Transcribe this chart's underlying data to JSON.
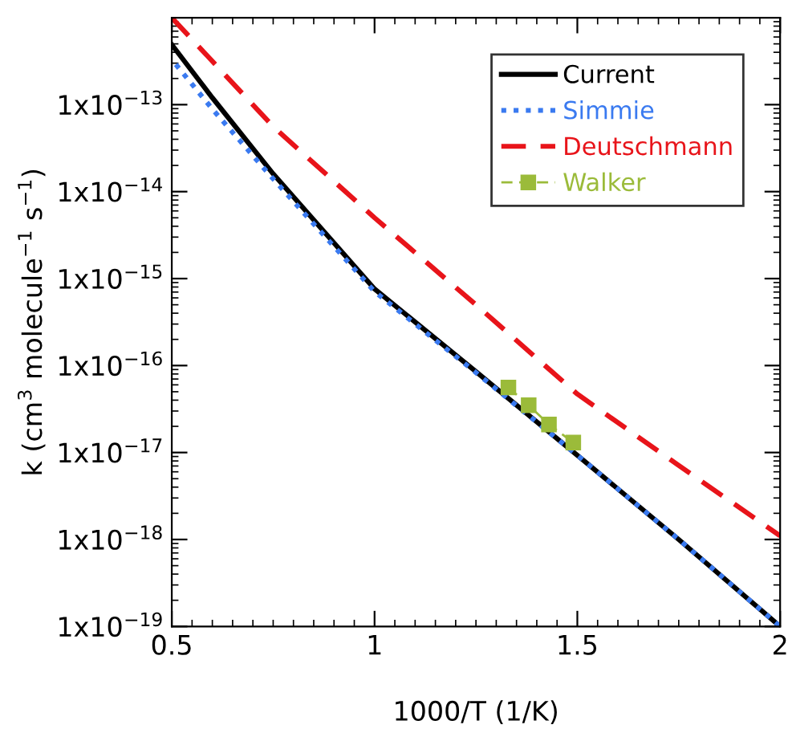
{
  "chart_data": {
    "type": "line",
    "xlabel": "1000/T (1/K)",
    "ylabel": "k (cm$^{3}$ molecule$^{−1}$ s$^{−1}$)",
    "log": "y",
    "grid": false,
    "legend": "top right",
    "xlim": [
      0.5,
      2
    ],
    "xticks": [
      0.5,
      1,
      1.5,
      2
    ],
    "ylim": [
      1e-19,
      1e-12
    ],
    "yticks": [
      {
        "value": 1e-19,
        "label": "1x10$^{−19}$"
      },
      {
        "value": 1e-18,
        "label": "1x10$^{−18}$"
      },
      {
        "value": 1e-17,
        "label": "1x10$^{−17}$"
      },
      {
        "value": 1e-16,
        "label": "1x10$^{−16}$"
      },
      {
        "value": 1e-15,
        "label": "1x10$^{−15}$"
      },
      {
        "value": 1e-14,
        "label": "1x10$^{−14}$"
      },
      {
        "value": 1e-13,
        "label": "1x10$^{−13}$"
      }
    ],
    "series": [
      {
        "name": "Current",
        "color": "#000000",
        "line_style": "solid",
        "marker": "none",
        "x": [
          0.5,
          0.6,
          0.75,
          1.0,
          1.25,
          1.5,
          1.75,
          2.0
        ],
        "values": [
          4.9e-13,
          1.2e-13,
          1.6e-14,
          7.6e-16,
          8.5e-17,
          9.3e-18,
          1e-18,
          1e-19
        ]
      },
      {
        "name": "Simmie",
        "color": "#3a7af0",
        "line_style": "dotted",
        "marker": "none",
        "x": [
          0.51,
          0.6,
          0.75,
          1.0,
          1.25,
          1.5,
          1.75,
          2.0
        ],
        "values": [
          2.9e-13,
          8.9e-14,
          1.4e-14,
          7.1e-16,
          8.3e-17,
          9.3e-18,
          1e-18,
          1e-19
        ]
      },
      {
        "name": "Deutschmann",
        "color": "#e8141a",
        "line_style": "dashed",
        "marker": "none",
        "x": [
          0.5,
          0.75,
          1.0,
          1.25,
          1.5,
          1.75,
          2.0
        ],
        "values": [
          1e-12,
          5.6e-14,
          5e-15,
          5e-16,
          4.7e-17,
          7.1e-18,
          1.1e-18
        ]
      },
      {
        "name": "Walker",
        "color": "#9bbb3a",
        "line_style": "dashed",
        "marker": "square",
        "x": [
          1.33,
          1.38,
          1.43,
          1.49
        ],
        "values": [
          5.6e-17,
          3.5e-17,
          2.1e-17,
          1.3e-17
        ]
      }
    ]
  }
}
